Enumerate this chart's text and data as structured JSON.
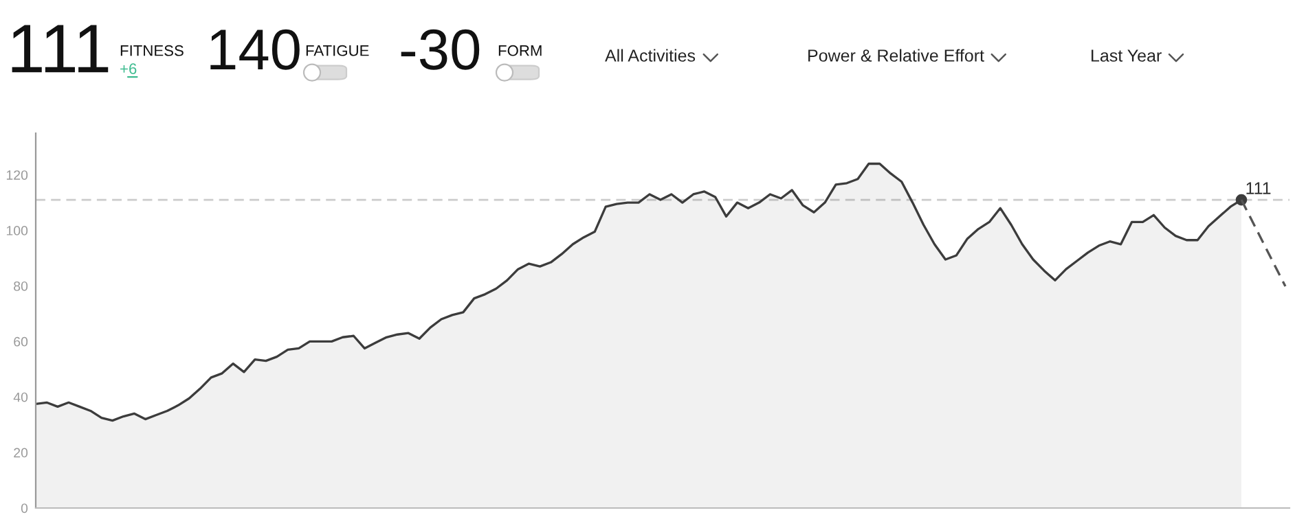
{
  "chart_data": {
    "type": "area",
    "categories": [
      null,
      null,
      null,
      null,
      null,
      null,
      null,
      null,
      null,
      null,
      null,
      null,
      null,
      null,
      null,
      null,
      null,
      null,
      null,
      null,
      null,
      null,
      null,
      null,
      null,
      null,
      null,
      null,
      null,
      null,
      null,
      null,
      null,
      null,
      null,
      null,
      null,
      null,
      null,
      null,
      null,
      null,
      null,
      null,
      null,
      null,
      null,
      null,
      null,
      null,
      null,
      null,
      null,
      null,
      null,
      null,
      null,
      null,
      null,
      null,
      null,
      null,
      null,
      null,
      null,
      null,
      null,
      null,
      null,
      null,
      null,
      null,
      null,
      null,
      null,
      null,
      null,
      null,
      null,
      null,
      null,
      null,
      null,
      null,
      null,
      null,
      null,
      null,
      null,
      null,
      null,
      null,
      null,
      null,
      null,
      null,
      null,
      null,
      null,
      null,
      null,
      null,
      null,
      null,
      null,
      null,
      null,
      null,
      null,
      null,
      null
    ],
    "series": [
      {
        "color": "#3c3c3c",
        "values": [
          37.5,
          38,
          36.5,
          38,
          36.5,
          35,
          32.5,
          31.5,
          33,
          34,
          32,
          33.5,
          35,
          37,
          39.5,
          43,
          47,
          48.5,
          52,
          49,
          53.5,
          53,
          54.5,
          57,
          57.5,
          60,
          60,
          60,
          61.5,
          62,
          57.5,
          59.5,
          61.5,
          62.5,
          63,
          61,
          65,
          68,
          69.5,
          70.5,
          75.5,
          77,
          79,
          82,
          86,
          88,
          87,
          88.5,
          91.5,
          95,
          97.5,
          99.5,
          108.5,
          109.5,
          110,
          110,
          113,
          111,
          113,
          110,
          113,
          114,
          112,
          105,
          110,
          108,
          110,
          113,
          111.5,
          114.5,
          109,
          106.5,
          110,
          116.5,
          117,
          118.5,
          124,
          124,
          120.5,
          117.5,
          110,
          102,
          95,
          89.5,
          91,
          97,
          100.5,
          103,
          108,
          102,
          95,
          89.5,
          85.5,
          82,
          86,
          89,
          92,
          94.5,
          96,
          95,
          103,
          103,
          105.5,
          101,
          98,
          96.5,
          96.5,
          101.5,
          105,
          108.5,
          111
        ],
        "value_labels": [
          null,
          null,
          null,
          null,
          null,
          null,
          null,
          null,
          null,
          null,
          null,
          null,
          null,
          null,
          null,
          null,
          null,
          null,
          null,
          null,
          null,
          null,
          null,
          null,
          null,
          null,
          null,
          null,
          null,
          null,
          null,
          null,
          null,
          null,
          null,
          null,
          null,
          null,
          null,
          null,
          null,
          null,
          null,
          null,
          null,
          null,
          null,
          null,
          null,
          null,
          null,
          null,
          null,
          null,
          null,
          null,
          null,
          null,
          null,
          null,
          null,
          null,
          null,
          null,
          null,
          null,
          null,
          null,
          null,
          null,
          null,
          null,
          null,
          null,
          null,
          null,
          null,
          null,
          null,
          null,
          null,
          null,
          null,
          null,
          null,
          null,
          null,
          null,
          null,
          null,
          null,
          null,
          null,
          null,
          null,
          null,
          null,
          null,
          null,
          null,
          null,
          null,
          null,
          null,
          null,
          null,
          null,
          null,
          null,
          null,
          "111"
        ]
      }
    ],
    "ylim": [
      0,
      135
    ],
    "yticks": [
      0,
      20,
      40,
      60,
      80,
      100,
      120
    ],
    "ref_lines": [
      {
        "axis": "y",
        "value": 111,
        "color": "#cccccc",
        "line_style": "dashed"
      }
    ],
    "grid": false,
    "legend": false,
    "tick_labels": "y",
    "annotations": [
      "111",
      "FITNESS",
      "+6",
      "140",
      "FATIGUE",
      "-30",
      "FORM",
      "All Activities",
      "Power & Relative Effort",
      "Last Year"
    ]
  }
}
